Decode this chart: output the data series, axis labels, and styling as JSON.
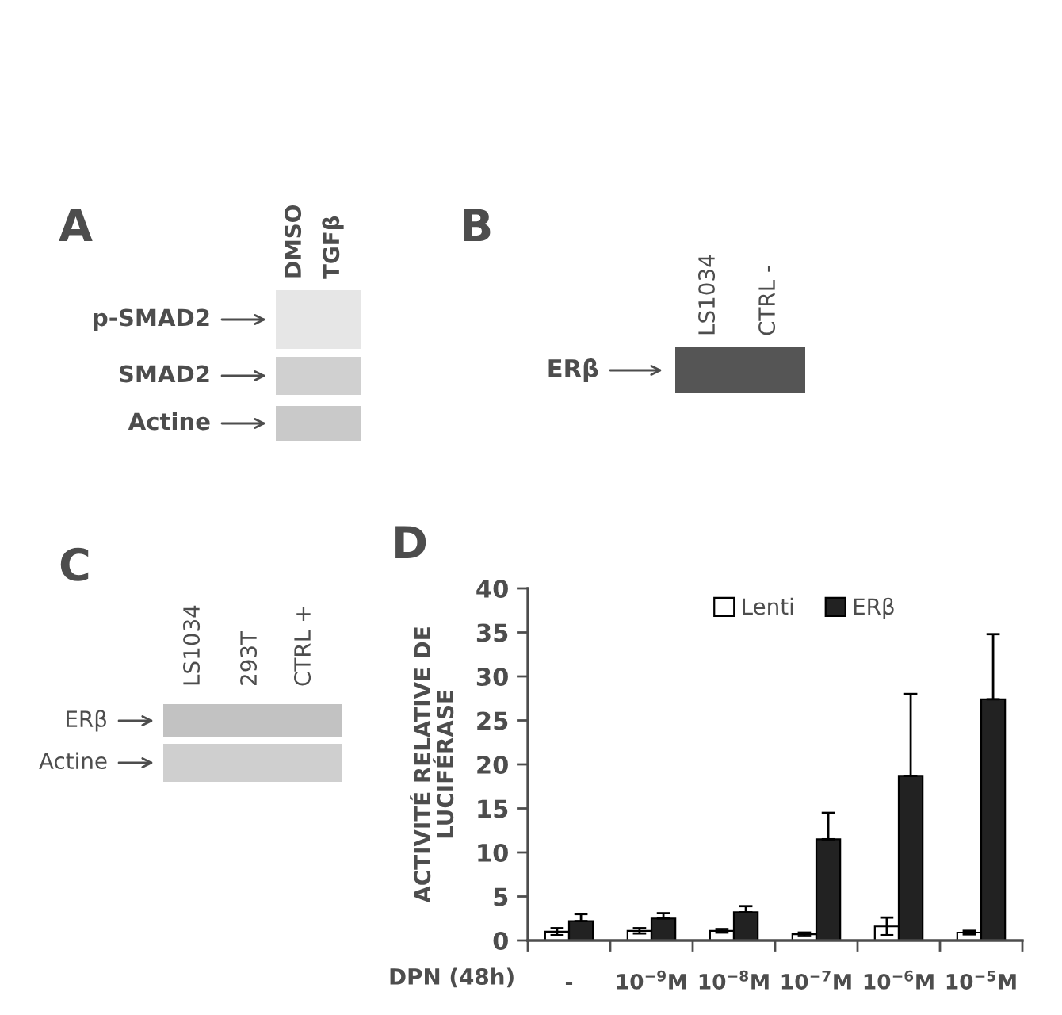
{
  "chart_data": [
    {
      "type": "other",
      "title": "A",
      "categories": [
        "DMSO",
        "TGFβ"
      ],
      "y_categories": [
        "p-SMAD2",
        "SMAD2",
        "Actine"
      ]
    },
    {
      "type": "other",
      "title": "B",
      "categories": [
        "LS1034",
        "CTRL -"
      ],
      "y_categories": [
        "ERβ"
      ]
    },
    {
      "type": "other",
      "title": "C",
      "categories": [
        "LS1034",
        "293T",
        "CTRL +"
      ],
      "y_categories": [
        "ERβ",
        "Actine"
      ]
    },
    {
      "type": "bar",
      "title": "D",
      "ylabel": "ACTIVITÉ RELATIVE DE\nLUCIFÉRASE",
      "xlabel": "DPN (48h)",
      "categories": [
        "-",
        "10$^{−9}$M",
        "10$^{−8}$M",
        "10$^{−7}$M",
        "10$^{−6}$M",
        "10$^{−5}$M"
      ],
      "ylim": [
        0,
        40
      ],
      "yticks": [
        0,
        5,
        10,
        15,
        20,
        25,
        30,
        35,
        40
      ],
      "legend": "top",
      "series": [
        {
          "name": "Lenti",
          "color": "#ffffff",
          "values": [
            1.0,
            1.1,
            1.1,
            0.7,
            1.6,
            0.9
          ],
          "errors": [
            0.4,
            0.3,
            0.2,
            0.2,
            1.0,
            0.2
          ]
        },
        {
          "name": "ERβ",
          "color": "#222222",
          "values": [
            2.2,
            2.5,
            3.2,
            11.5,
            18.7,
            27.4
          ],
          "errors": [
            [
              2.2,
              3.0
            ],
            [
              2.5,
              3.1
            ],
            [
              3.2,
              3.9
            ],
            [
              11.5,
              14.5
            ],
            [
              18.7,
              28.0
            ],
            [
              27.4,
              34.8
            ]
          ]
        }
      ]
    }
  ]
}
